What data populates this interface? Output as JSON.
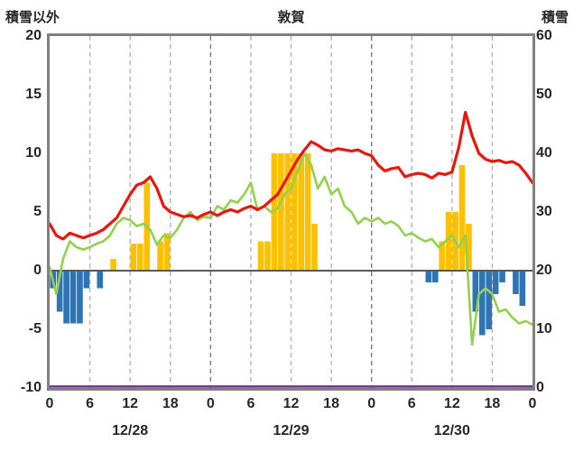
{
  "header": {
    "left_axis_title": "積雪以外",
    "title": "敦賀",
    "right_axis_title": "積雪"
  },
  "chart_data": {
    "type": "combo-bar-line",
    "title": "敦賀",
    "x_unit": "hour",
    "x_range_hours": [
      0,
      72
    ],
    "grid": "vertical-dashed-every-6h",
    "x_ticks": {
      "hours": [
        0,
        6,
        12,
        18,
        24,
        30,
        36,
        42,
        48,
        54,
        60,
        66,
        72
      ],
      "labels": [
        "0",
        "6",
        "12",
        "18",
        "0",
        "6",
        "12",
        "18",
        "0",
        "6",
        "12",
        "18",
        "0"
      ]
    },
    "date_labels": [
      {
        "label": "12/28",
        "hour": 12
      },
      {
        "label": "12/29",
        "hour": 36
      },
      {
        "label": "12/30",
        "hour": 60
      }
    ],
    "left_axis": {
      "title": "積雪以外",
      "min": -10,
      "max": 20,
      "tick_step": 5,
      "ticks": [
        20,
        15,
        10,
        5,
        0,
        -5,
        -10
      ]
    },
    "right_axis": {
      "title": "積雪",
      "min": 0,
      "max": 60,
      "tick_step": 10,
      "ticks": [
        60,
        50,
        40,
        30,
        20,
        10,
        0
      ]
    },
    "series": [
      {
        "name": "blue-bars",
        "type": "bar",
        "axis": "left",
        "color": "#2e75b6",
        "points": [
          [
            0,
            -1.5
          ],
          [
            1,
            -3.5
          ],
          [
            2,
            -4.5
          ],
          [
            3,
            -4.5
          ],
          [
            4,
            -4.5
          ],
          [
            5,
            -1.5
          ],
          [
            7,
            -1.5
          ],
          [
            56,
            -1.0
          ],
          [
            57,
            -1.0
          ],
          [
            63,
            -3.5
          ],
          [
            64,
            -5.5
          ],
          [
            65,
            -5.0
          ],
          [
            66,
            -2.0
          ],
          [
            67,
            -1.0
          ],
          [
            69,
            -2.0
          ],
          [
            70,
            -3.0
          ]
        ]
      },
      {
        "name": "orange-bars",
        "type": "bar",
        "axis": "left",
        "color": "#ffc000",
        "points": [
          [
            9,
            1.0
          ],
          [
            12,
            2.3
          ],
          [
            13,
            2.3
          ],
          [
            14,
            7.5
          ],
          [
            16,
            2.5
          ],
          [
            17,
            3.2
          ],
          [
            31,
            2.5
          ],
          [
            32,
            2.5
          ],
          [
            33,
            10
          ],
          [
            34,
            10
          ],
          [
            35,
            10
          ],
          [
            36,
            10
          ],
          [
            37,
            10
          ],
          [
            38,
            10
          ],
          [
            39,
            4
          ],
          [
            58,
            2.5
          ],
          [
            59,
            5
          ],
          [
            60,
            5
          ],
          [
            61,
            9
          ],
          [
            62,
            4
          ]
        ]
      },
      {
        "name": "green-line",
        "type": "line",
        "axis": "left",
        "color": "#92d050",
        "values": [
          0.3,
          -2.0,
          1.0,
          2.5,
          2.0,
          1.8,
          2.0,
          2.3,
          2.5,
          3.0,
          4.0,
          4.5,
          4.3,
          3.8,
          4.0,
          3.5,
          2.2,
          3.0,
          2.8,
          3.5,
          4.5,
          5.0,
          4.3,
          4.6,
          4.5,
          5.5,
          5.2,
          6.0,
          5.8,
          6.5,
          7.5,
          5.2,
          5.5,
          5.0,
          5.3,
          6.5,
          7.0,
          8.5,
          10.0,
          9.0,
          7.0,
          8.0,
          6.5,
          7.0,
          5.5,
          5.0,
          4.0,
          4.5,
          4.2,
          4.5,
          4.0,
          4.2,
          3.8,
          3.0,
          3.2,
          2.8,
          2.5,
          2.7,
          2.0,
          2.5,
          3.0,
          2.0,
          3.0,
          -6.3,
          -2.0,
          -1.5,
          -2.0,
          -3.5,
          -3.3,
          -4.0,
          -4.5,
          -4.3,
          -4.6
        ]
      },
      {
        "name": "red-line",
        "type": "line",
        "axis": "left",
        "color": "#e8160c",
        "values": [
          4.0,
          3.0,
          2.7,
          3.2,
          3.0,
          2.8,
          3.0,
          3.2,
          3.5,
          4.0,
          4.5,
          5.5,
          6.5,
          7.3,
          7.5,
          8.0,
          7.0,
          5.5,
          5.0,
          4.8,
          4.6,
          4.7,
          4.5,
          4.8,
          5.0,
          4.7,
          5.0,
          5.2,
          5.0,
          5.3,
          5.5,
          5.2,
          5.5,
          6.0,
          6.5,
          7.5,
          8.5,
          9.5,
          10.3,
          11.0,
          10.7,
          10.3,
          10.2,
          10.4,
          10.3,
          10.2,
          10.3,
          10.0,
          9.8,
          9.0,
          8.5,
          8.7,
          8.8,
          8.0,
          8.2,
          8.3,
          8.2,
          7.9,
          8.3,
          8.2,
          8.4,
          10.5,
          13.5,
          11.5,
          10.0,
          9.5,
          9.3,
          9.4,
          9.2,
          9.3,
          9.0,
          8.3,
          7.5
        ]
      },
      {
        "name": "purple-line-snow-depth",
        "type": "constant-line",
        "axis": "right",
        "color": "#7030a0",
        "constant_value": 0
      }
    ]
  },
  "colors": {
    "frame": "#808080",
    "grid": "#b3b3b3",
    "grid_day_boundary": "#7a7a7a",
    "zero_line": "#595959",
    "text": "#262626",
    "red_line": "#e8160c",
    "green_line": "#92d050",
    "orange_bar": "#ffc000",
    "blue_bar": "#2e75b6",
    "purple_line": "#7030a0"
  }
}
